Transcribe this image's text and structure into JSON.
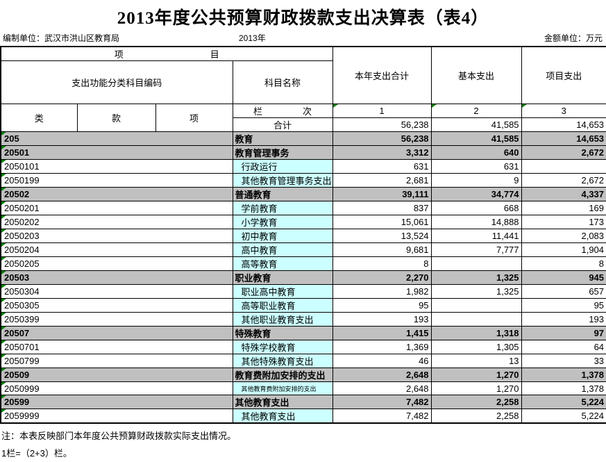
{
  "title": "2013年度公共预算财政拨款支出决算表（表4）",
  "meta": {
    "prepared_by": "编制单位：武汉市洪山区教育局",
    "year": "2013年",
    "unit": "金额单位：万元"
  },
  "table": {
    "header": {
      "project_left": "项",
      "project_right": "目",
      "code_header": "支出功能分类科目编码",
      "subject_name": "科目名称",
      "col_total": "本年支出合计",
      "col_basic": "基本支出",
      "col_project": "项目支出",
      "class_label": "类",
      "section_label": "款",
      "item_label": "项",
      "lan_label": "栏",
      "ci_label": "次",
      "col_nums": [
        "1",
        "2",
        "3"
      ],
      "total_label": "合计",
      "total_values": [
        "56,238",
        "41,585",
        "14,653"
      ]
    },
    "rows": [
      {
        "code": "205",
        "name": "教育",
        "v": [
          "56,238",
          "41,585",
          "14,653"
        ],
        "type": "summary"
      },
      {
        "code": "20501",
        "name": "教育管理事务",
        "v": [
          "3,312",
          "640",
          "2,672"
        ],
        "type": "summary"
      },
      {
        "code": "2050101",
        "name": "行政运行",
        "v": [
          "631",
          "631",
          ""
        ],
        "type": "detail"
      },
      {
        "code": "2050199",
        "name": "其他教育管理事务支出",
        "v": [
          "2,681",
          "9",
          "2,672"
        ],
        "type": "detail"
      },
      {
        "code": "20502",
        "name": "普通教育",
        "v": [
          "39,111",
          "34,774",
          "4,337"
        ],
        "type": "summary"
      },
      {
        "code": "2050201",
        "name": "学前教育",
        "v": [
          "837",
          "668",
          "169"
        ],
        "type": "detail"
      },
      {
        "code": "2050202",
        "name": "小学教育",
        "v": [
          "15,061",
          "14,888",
          "173"
        ],
        "type": "detail"
      },
      {
        "code": "2050203",
        "name": "初中教育",
        "v": [
          "13,524",
          "11,441",
          "2,083"
        ],
        "type": "detail"
      },
      {
        "code": "2050204",
        "name": "高中教育",
        "v": [
          "9,681",
          "7,777",
          "1,904"
        ],
        "type": "detail"
      },
      {
        "code": "2050205",
        "name": "高等教育",
        "v": [
          "8",
          "",
          "8"
        ],
        "type": "detail"
      },
      {
        "code": "20503",
        "name": "职业教育",
        "v": [
          "2,270",
          "1,325",
          "945"
        ],
        "type": "summary"
      },
      {
        "code": "2050304",
        "name": "职业高中教育",
        "v": [
          "1,982",
          "1,325",
          "657"
        ],
        "type": "detail"
      },
      {
        "code": "2050305",
        "name": "高等职业教育",
        "v": [
          "95",
          "",
          "95"
        ],
        "type": "detail"
      },
      {
        "code": "2050399",
        "name": "其他职业教育支出",
        "v": [
          "193",
          "",
          "193"
        ],
        "type": "detail"
      },
      {
        "code": "20507",
        "name": "特殊教育",
        "v": [
          "1,415",
          "1,318",
          "97"
        ],
        "type": "summary"
      },
      {
        "code": "2050701",
        "name": "特殊学校教育",
        "v": [
          "1,369",
          "1,305",
          "64"
        ],
        "type": "detail"
      },
      {
        "code": "2050799",
        "name": "其他特殊教育支出",
        "v": [
          "46",
          "13",
          "33"
        ],
        "type": "detail"
      },
      {
        "code": "20509",
        "name": "教育费附加安排的支出",
        "v": [
          "2,648",
          "1,270",
          "1,378"
        ],
        "type": "summary"
      },
      {
        "code": "2050999",
        "name": "其他教育费附加安排的支出",
        "v": [
          "2,648",
          "1,270",
          "1,378"
        ],
        "type": "detail",
        "small": true
      },
      {
        "code": "20599",
        "name": "其他教育支出",
        "v": [
          "7,482",
          "2,258",
          "5,224"
        ],
        "type": "summary"
      },
      {
        "code": "2059999",
        "name": "其他教育支出",
        "v": [
          "7,482",
          "2,258",
          "5,224"
        ],
        "type": "detail"
      }
    ]
  },
  "notes": [
    "注：本表反映部门本年度公共预算财政拨款实际支出情况。",
    "1栏=（2+3）栏。"
  ],
  "colors": {
    "summary_row_bg": "#c0c0c0",
    "detail_name_bg": "#ccffff",
    "indicator_green": "#008000",
    "border": "#000000"
  }
}
